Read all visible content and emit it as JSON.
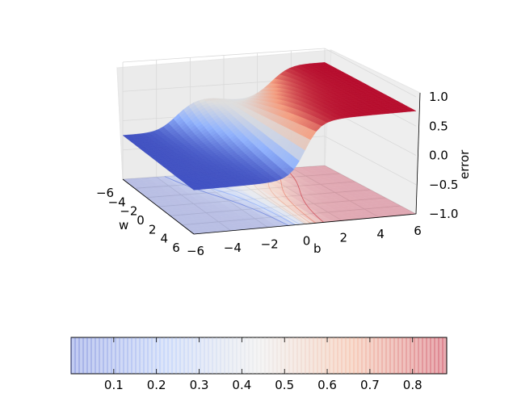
{
  "chart_data": {
    "type": "surface3d",
    "title": "",
    "xlabel": "b",
    "ylabel": "w",
    "zlabel": "error",
    "x_ticks": [
      "−6",
      "−4",
      "−2",
      "0",
      "2",
      "4",
      "6"
    ],
    "y_ticks": [
      "−6",
      "−4",
      "−2",
      "0",
      "2",
      "4",
      "6"
    ],
    "z_ticks": [
      "−1.0",
      "−0.5",
      "0.0",
      "0.5",
      "1.0"
    ],
    "xlim": [
      -6,
      6
    ],
    "ylim": [
      -6,
      6
    ],
    "zlim": [
      -1,
      1
    ],
    "surface": {
      "description_values": "error surface spanning approx 0.0 to 0.9, low (blue) for negative b, high (red) for positive b, with contour projection at z = -1",
      "z_min": 0.0,
      "z_max": 0.88
    },
    "colorbar": {
      "cmap": "coolwarm",
      "ticks": [
        "0.1",
        "0.2",
        "0.3",
        "0.4",
        "0.5",
        "0.6",
        "0.7",
        "0.8"
      ],
      "range": [
        0.0,
        0.88
      ]
    },
    "grid": true
  }
}
